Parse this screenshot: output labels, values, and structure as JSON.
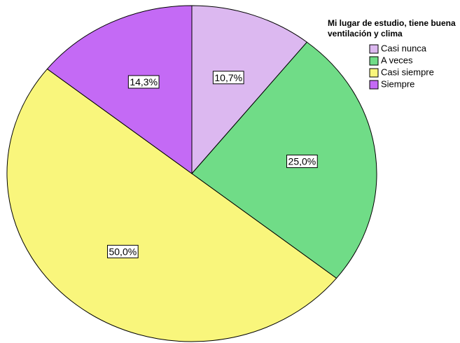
{
  "chart_data": {
    "type": "pie",
    "legend_title": "Mi lugar de estudio, tiene buena ventilación y clima",
    "categories": [
      "Casi nunca",
      "A veces",
      "Casi siempre",
      "Siempre"
    ],
    "values": [
      10.7,
      25.0,
      50.0,
      14.3
    ],
    "value_labels": [
      "10,7%",
      "25,0%",
      "50,0%",
      "14,3%"
    ],
    "colors": [
      "#dcb8f0",
      "#70dc87",
      "#f9f67c",
      "#c46af5"
    ],
    "legend": "upper right"
  }
}
